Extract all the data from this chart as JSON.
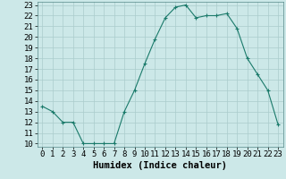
{
  "x": [
    0,
    1,
    2,
    3,
    4,
    5,
    6,
    7,
    8,
    9,
    10,
    11,
    12,
    13,
    14,
    15,
    16,
    17,
    18,
    19,
    20,
    21,
    22,
    23
  ],
  "y": [
    13.5,
    13.0,
    12.0,
    12.0,
    10.0,
    10.0,
    10.0,
    10.0,
    13.0,
    15.0,
    17.5,
    19.8,
    21.8,
    22.8,
    23.0,
    21.8,
    22.0,
    22.0,
    22.2,
    20.8,
    18.0,
    16.5,
    15.0,
    11.8
  ],
  "line_color": "#1a7a6a",
  "marker": "+",
  "marker_size": 3,
  "marker_linewidth": 0.8,
  "line_width": 0.8,
  "bg_color": "#cce8e8",
  "grid_color": "#aacccc",
  "xlabel": "Humidex (Indice chaleur)",
  "ylim": [
    10,
    23
  ],
  "xlim": [
    -0.5,
    23.5
  ],
  "yticks": [
    10,
    11,
    12,
    13,
    14,
    15,
    16,
    17,
    18,
    19,
    20,
    21,
    22,
    23
  ],
  "xticks": [
    0,
    1,
    2,
    3,
    4,
    5,
    6,
    7,
    8,
    9,
    10,
    11,
    12,
    13,
    14,
    15,
    16,
    17,
    18,
    19,
    20,
    21,
    22,
    23
  ],
  "xlabel_fontsize": 7.5,
  "tick_fontsize": 6.5
}
